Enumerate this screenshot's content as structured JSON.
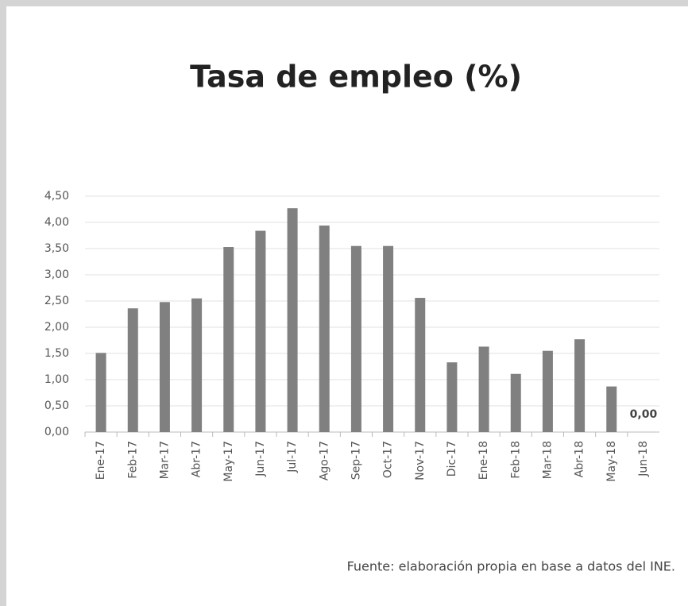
{
  "chart_data": {
    "type": "bar",
    "title": "Tasa de empleo (%)",
    "categories": [
      "Ene-17",
      "Feb-17",
      "Mar-17",
      "Abr-17",
      "May-17",
      "Jun-17",
      "Jul-17",
      "Ago-17",
      "Sep-17",
      "Oct-17",
      "Nov-17",
      "Dic-17",
      "Ene-18",
      "Feb-18",
      "Mar-18",
      "Abr-18",
      "May-18",
      "Jun-18"
    ],
    "values": [
      1.51,
      2.36,
      2.48,
      2.55,
      3.53,
      3.84,
      4.27,
      3.94,
      3.55,
      3.55,
      2.56,
      1.33,
      1.63,
      1.11,
      1.55,
      1.77,
      0.87,
      0
    ],
    "value_labels": [
      null,
      null,
      null,
      null,
      null,
      null,
      null,
      null,
      null,
      null,
      null,
      null,
      null,
      null,
      null,
      null,
      null,
      "0,00"
    ],
    "color": "#808080",
    "ylim": [
      0,
      4.5
    ],
    "yticks": [
      {
        "value": 0,
        "label": "0,00"
      },
      {
        "value": 0.5,
        "label": "0,50"
      },
      {
        "value": 1,
        "label": "1,00"
      },
      {
        "value": 1.5,
        "label": "1,50"
      },
      {
        "value": 2,
        "label": "2,00"
      },
      {
        "value": 2.5,
        "label": "2,50"
      },
      {
        "value": 3,
        "label": "3,00"
      },
      {
        "value": 3.5,
        "label": "3,50"
      },
      {
        "value": 4,
        "label": "4,00"
      },
      {
        "value": 4.5,
        "label": "4,50"
      }
    ],
    "grid": true,
    "source": "Fuente: elaboración propia en base a datos del INE."
  }
}
